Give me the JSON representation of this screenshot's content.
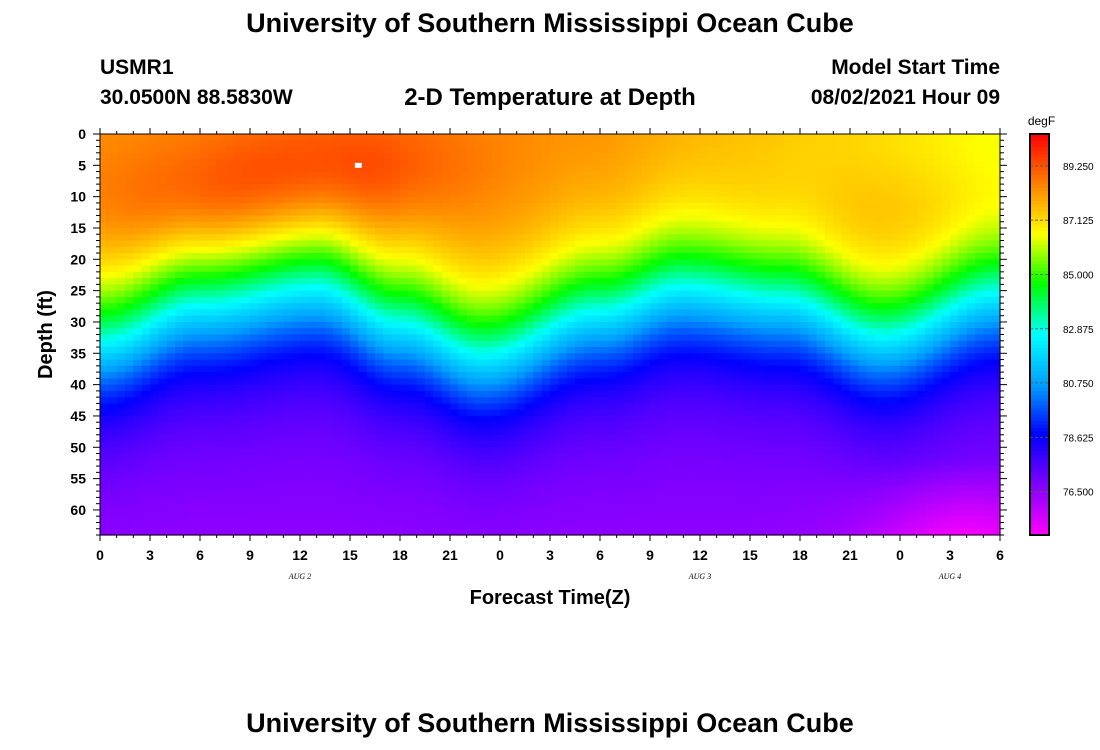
{
  "header": {
    "title": "University of Southern Mississippi Ocean Cube",
    "station": "USMR1",
    "location": "30.0500N  88.5830W",
    "subtitle": "2-D Temperature at Depth",
    "model_start_label": "Model Start Time",
    "model_start_value": "08/02/2021 Hour 09"
  },
  "footer": {
    "title": "University of Southern Mississippi Ocean Cube"
  },
  "chart_data": {
    "type": "heatmap",
    "title": "2-D Temperature at Depth",
    "xlabel": "Forecast Time(Z)",
    "ylabel": "Depth (ft)",
    "x_hours_range": [
      0,
      54
    ],
    "x_tick_labels": [
      "0",
      "3",
      "6",
      "9",
      "12",
      "15",
      "18",
      "21",
      "0",
      "3",
      "6",
      "9",
      "12",
      "15",
      "18",
      "21",
      "0",
      "3",
      "6"
    ],
    "date_labels": [
      {
        "label": "AUG 2",
        "hour": 12
      },
      {
        "label": "AUG 3",
        "hour": 36
      },
      {
        "label": "AUG 4",
        "hour": 51
      }
    ],
    "y_range": [
      0,
      64
    ],
    "y_ticks": [
      0,
      5,
      10,
      15,
      20,
      25,
      30,
      35,
      40,
      45,
      50,
      55,
      60
    ],
    "colorbar": {
      "units": "degF",
      "min": 74.8,
      "max": 90.5,
      "tick_values": [
        76.5,
        78.625,
        80.75,
        82.875,
        85.0,
        87.125,
        89.25
      ],
      "tick_labels": [
        "76.500",
        "78.625",
        "80.750",
        "82.875",
        "85.000",
        "87.125",
        "89.250"
      ],
      "colors": [
        "#ff00ff",
        "#8000ff",
        "#0000ff",
        "#00a0ff",
        "#00ffff",
        "#00ff00",
        "#ffff00",
        "#ff8000",
        "#ff0000"
      ]
    },
    "thermocline_depth_ft": [
      {
        "hour": 0,
        "depth": 33
      },
      {
        "hour": 6,
        "depth": 27
      },
      {
        "hour": 13,
        "depth": 24
      },
      {
        "hour": 18,
        "depth": 30
      },
      {
        "hour": 23,
        "depth": 35
      },
      {
        "hour": 30,
        "depth": 28
      },
      {
        "hour": 35,
        "depth": 24
      },
      {
        "hour": 41,
        "depth": 26
      },
      {
        "hour": 47,
        "depth": 32
      },
      {
        "hour": 54,
        "depth": 25
      }
    ],
    "marker": {
      "hour": 15.5,
      "depth": 5
    }
  }
}
